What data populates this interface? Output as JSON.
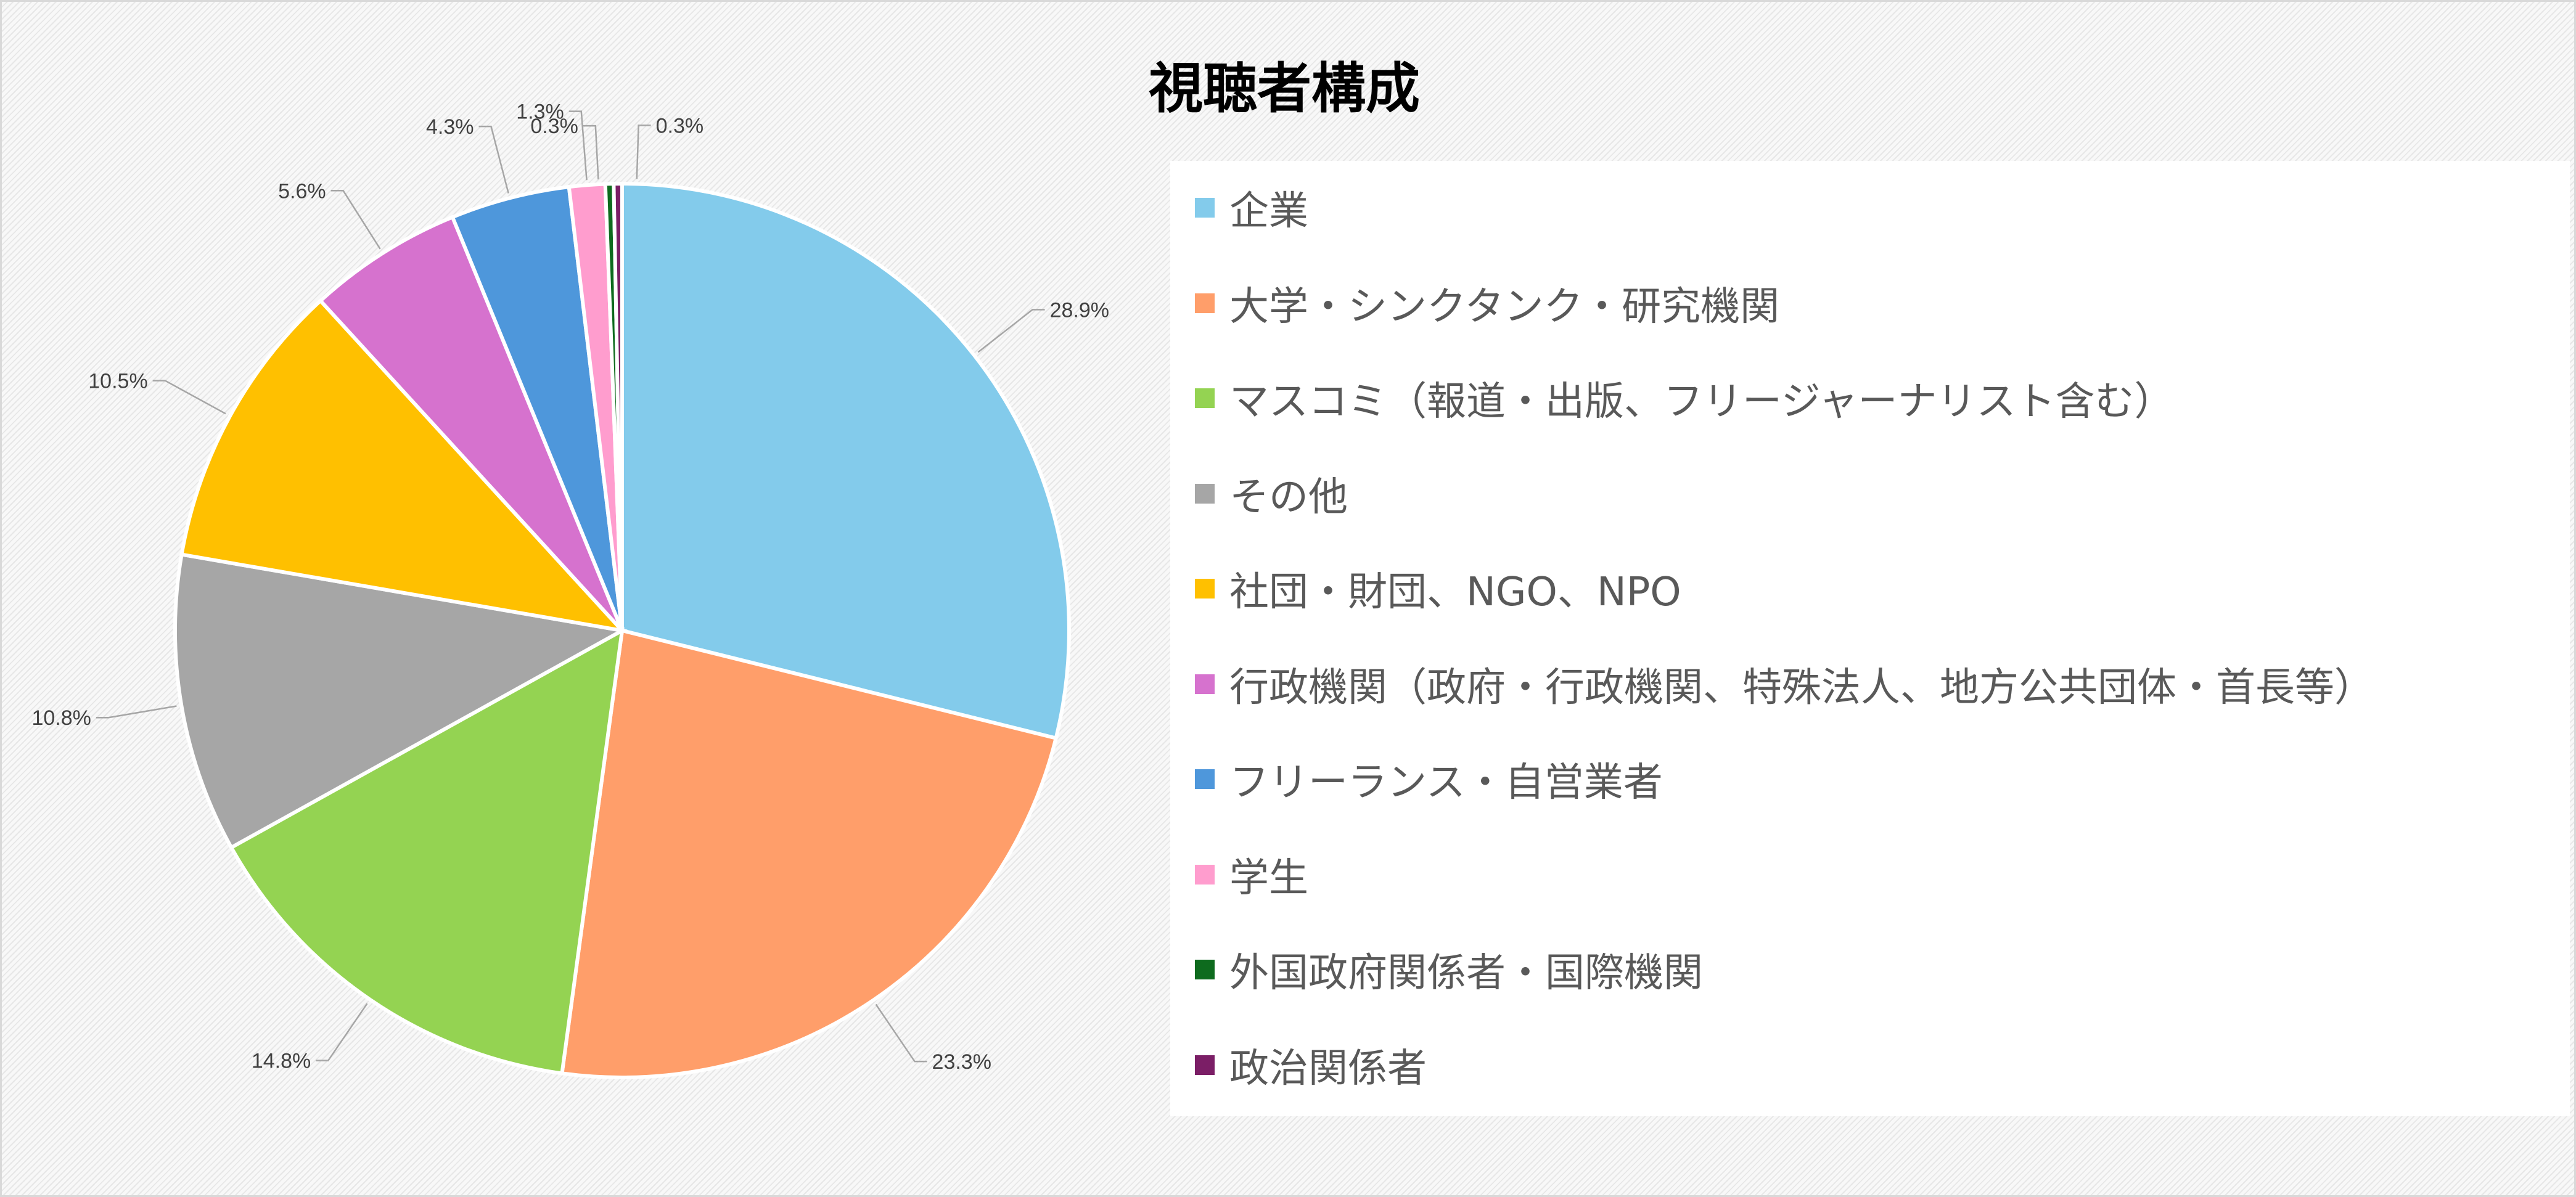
{
  "chart_data": {
    "type": "pie",
    "title": "視聴者構成",
    "legend_position": "right",
    "series": [
      {
        "name": "企業",
        "value": 28.9,
        "label": "28.9%",
        "color": "#83CBEB"
      },
      {
        "name": "大学・シンクタンク・研究機関",
        "value": 23.3,
        "label": "23.3%",
        "color": "#FF9E6A"
      },
      {
        "name": "マスコミ（報道・出版、フリージャーナリスト含む）",
        "value": 14.8,
        "label": "14.8%",
        "color": "#94D352"
      },
      {
        "name": "その他",
        "value": 10.8,
        "label": "10.8%",
        "color": "#A6A6A6"
      },
      {
        "name": "社団・財団、NGO、NPO",
        "value": 10.5,
        "label": "10.5%",
        "color": "#FFC000"
      },
      {
        "name": "行政機関（政府・行政機関、特殊法人、地方公共団体・首長等）",
        "value": 5.6,
        "label": "5.6%",
        "color": "#D672CE"
      },
      {
        "name": "フリーランス・自営業者",
        "value": 4.3,
        "label": "4.3%",
        "color": "#4E97DB"
      },
      {
        "name": "学生",
        "value": 1.3,
        "label": "1.3%",
        "color": "#FF9DCE"
      },
      {
        "name": "外国政府関係者・国際機関",
        "value": 0.3,
        "label": "0.3%",
        "color": "#0E6B1E"
      },
      {
        "name": "政治関係者",
        "value": 0.3,
        "label": "0.3%",
        "color": "#7B1E66"
      }
    ]
  }
}
